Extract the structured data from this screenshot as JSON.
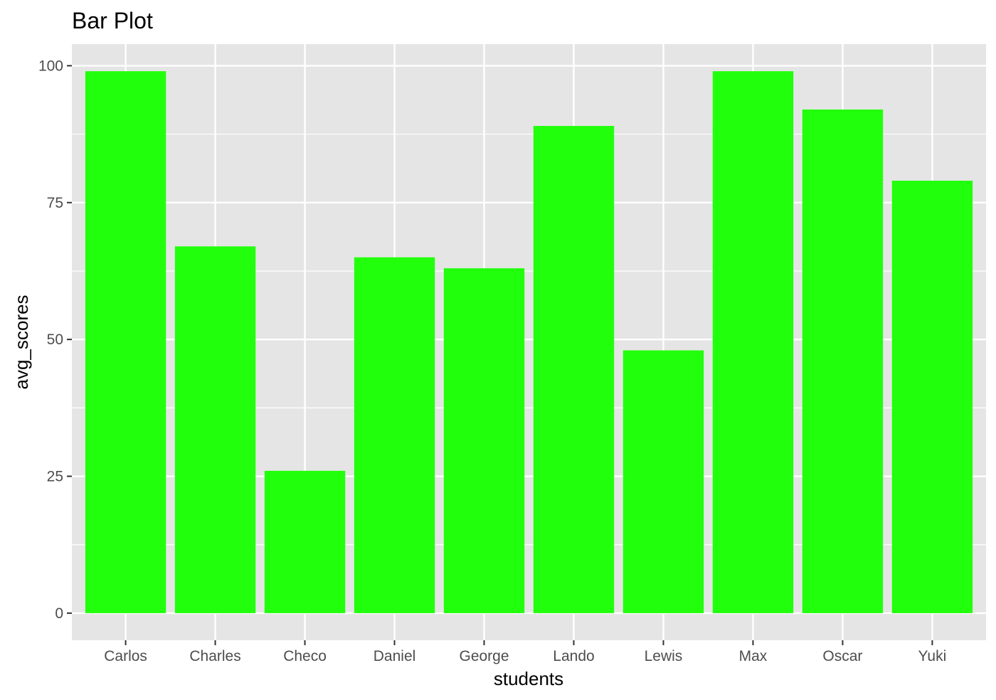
{
  "chart_data": {
    "type": "bar",
    "title": "Bar Plot",
    "xlabel": "students",
    "ylabel": "avg_scores",
    "categories": [
      "Carlos",
      "Charles",
      "Checo",
      "Daniel",
      "George",
      "Lando",
      "Lewis",
      "Max",
      "Oscar",
      "Yuki"
    ],
    "values": [
      99,
      67,
      26,
      65,
      63,
      89,
      48,
      99,
      92,
      79
    ],
    "ylim": [
      -4.95,
      103.95
    ],
    "yticks": [
      0,
      25,
      50,
      75,
      100
    ],
    "grid": true,
    "legend": "none",
    "bar_color": "#22FF0D",
    "panel_background": "#E5E5E5",
    "grid_color": "#FFFFFF"
  }
}
